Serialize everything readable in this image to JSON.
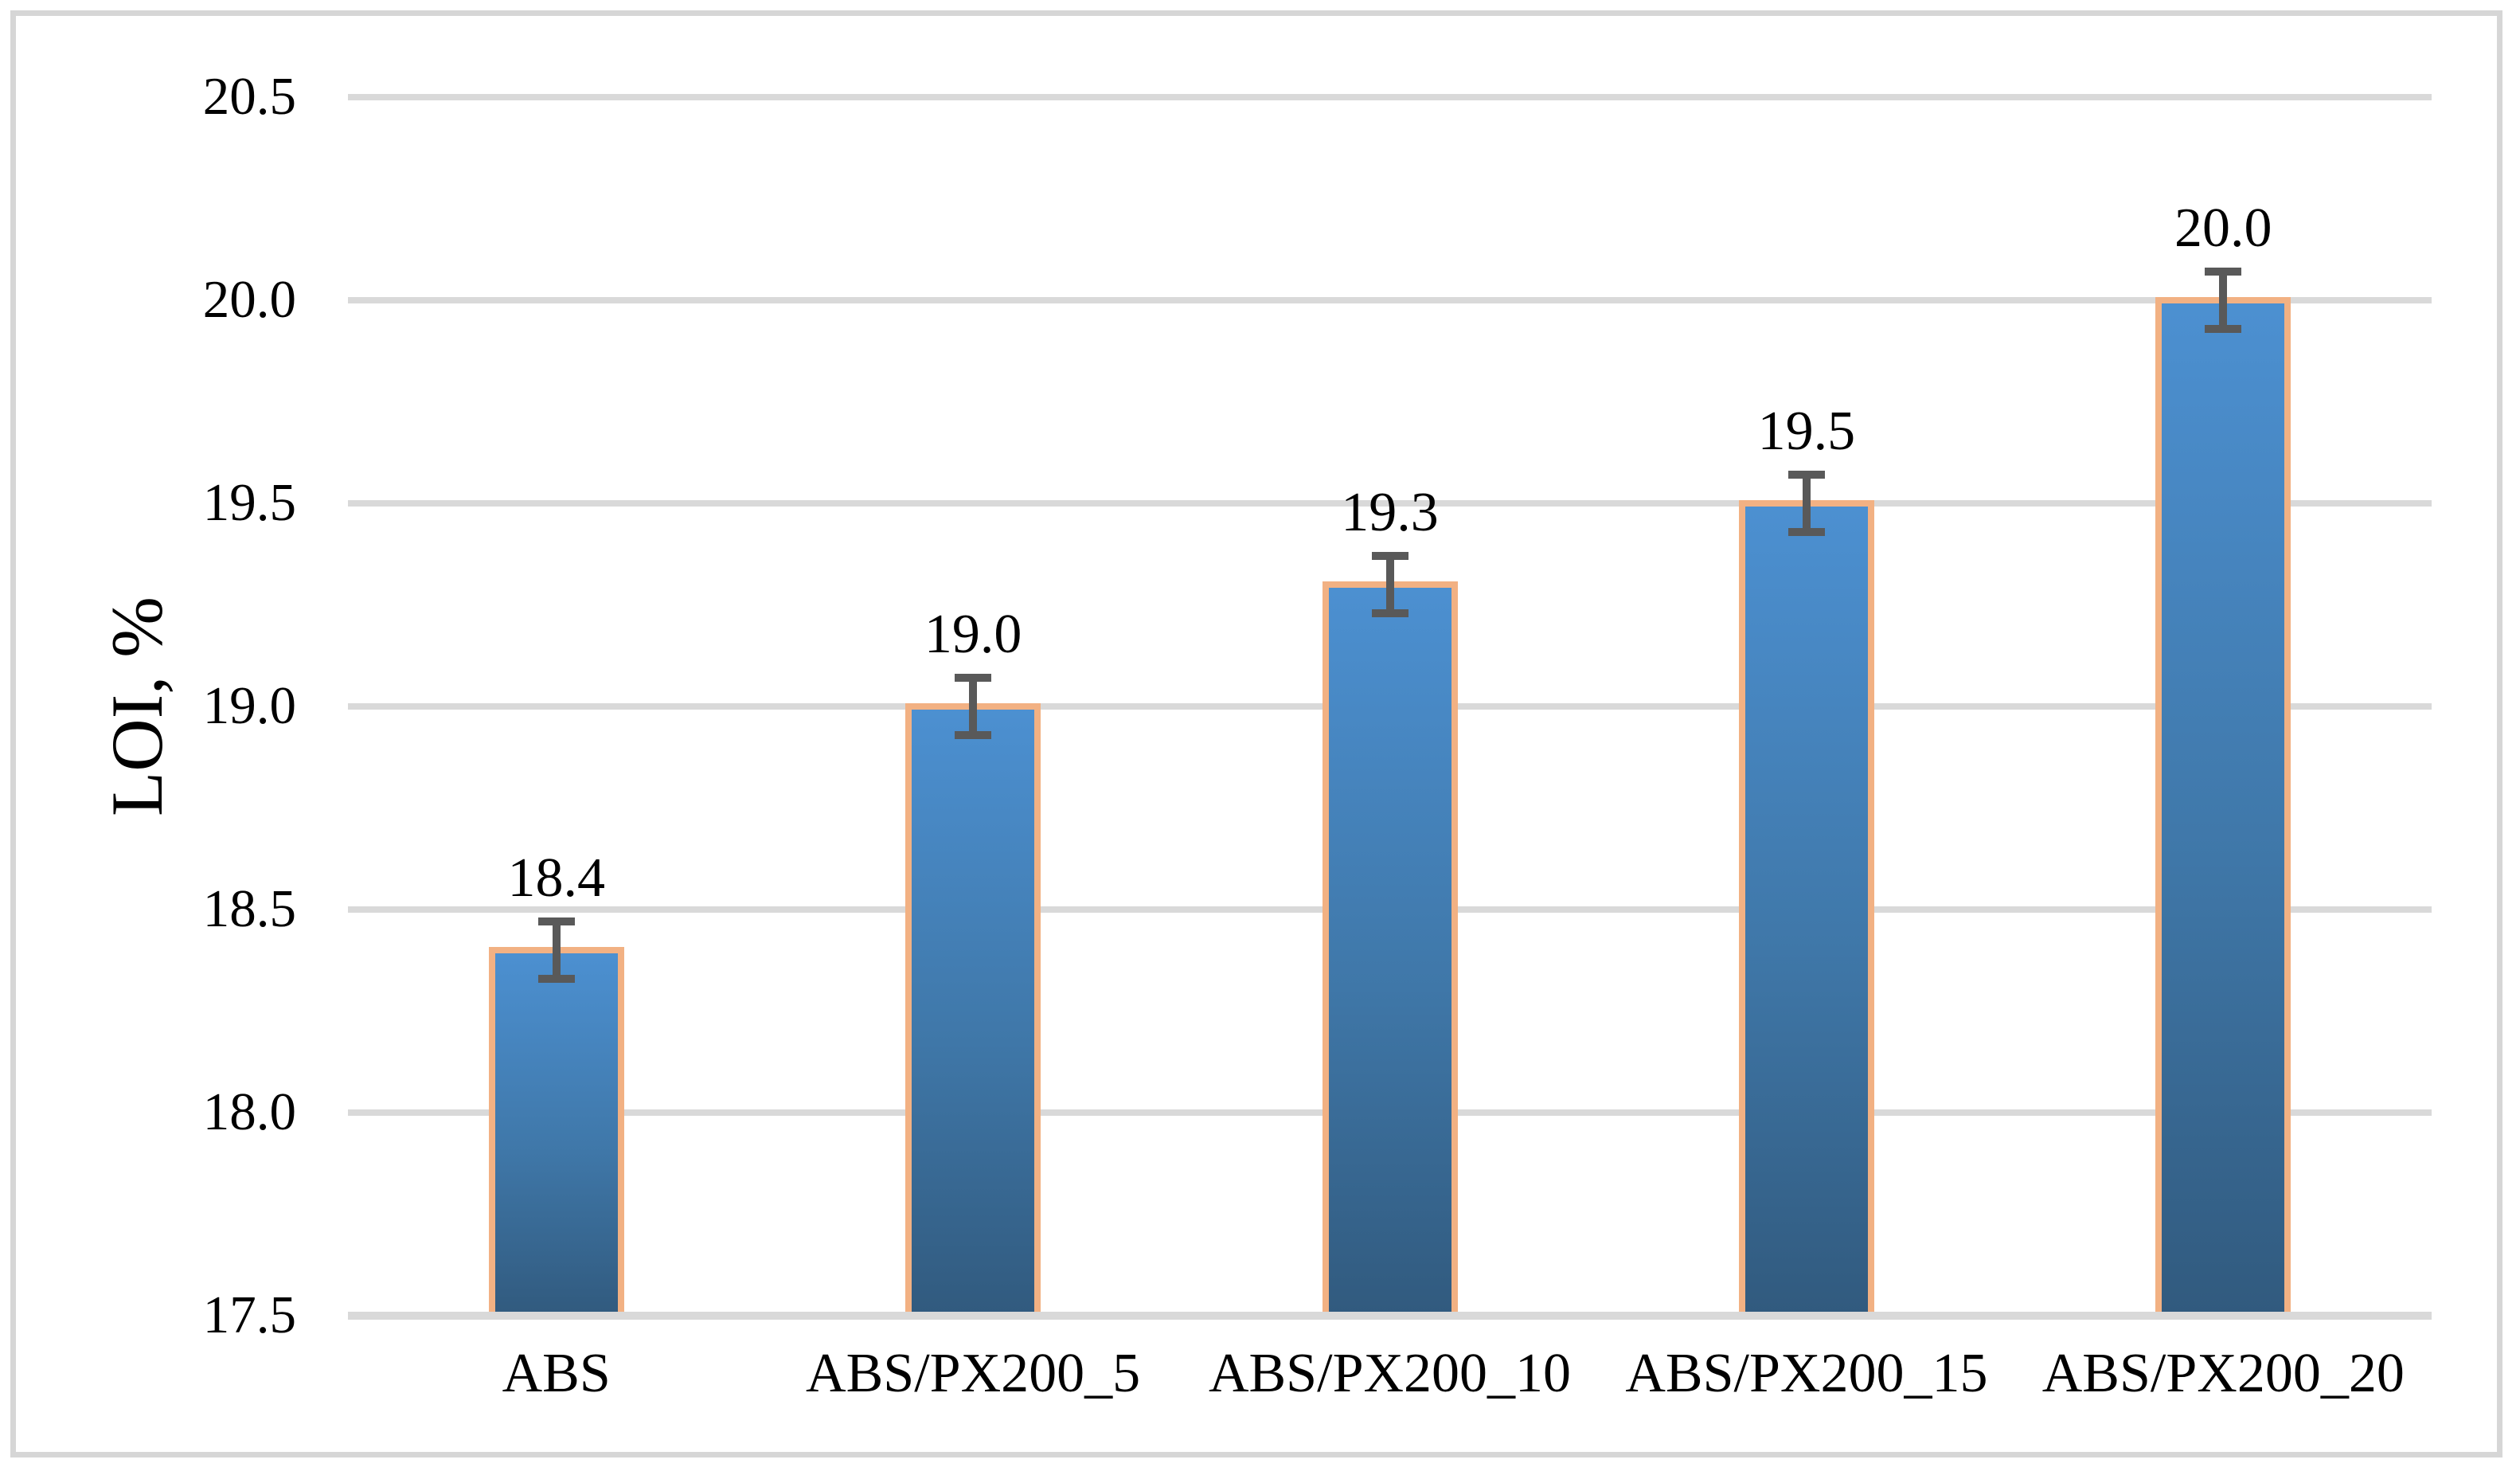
{
  "window": {
    "background": "#FFFFFF",
    "frame_border_color": "#D6D6D6"
  },
  "chart_data": {
    "type": "bar",
    "title": "",
    "categories": [
      "ABS",
      "ABS/PX200_5",
      "ABS/PX200_10",
      "ABS/PX200_15",
      "ABS/PX200_20"
    ],
    "values": [
      18.4,
      19.0,
      19.3,
      19.5,
      20.0
    ],
    "data_labels": [
      "18.4",
      "19.0",
      "19.3",
      "19.5",
      "20.0"
    ],
    "error_bars_plus_minus": [
      0.07,
      0.07,
      0.07,
      0.07,
      0.07
    ],
    "xlabel": "",
    "ylabel": "LOI, %",
    "ylim": [
      17.5,
      20.5
    ],
    "ytick_step": 0.5,
    "ytick_labels": [
      "20.5",
      "20.0",
      "19.5",
      "19.0",
      "18.5",
      "18.0",
      "17.5"
    ],
    "grid": "horizontal",
    "legend_position": "none",
    "style": {
      "bar_fill_top": "#4C90D1",
      "bar_fill_bottom": "#315A7E",
      "bar_border": "#F2B183",
      "error_bar_color": "#595959",
      "gridline_color": "#D9D9D9",
      "axis_line_color": "#D9D9D9",
      "text_color": "#000000",
      "plot_background": "#FFFFFF"
    }
  }
}
